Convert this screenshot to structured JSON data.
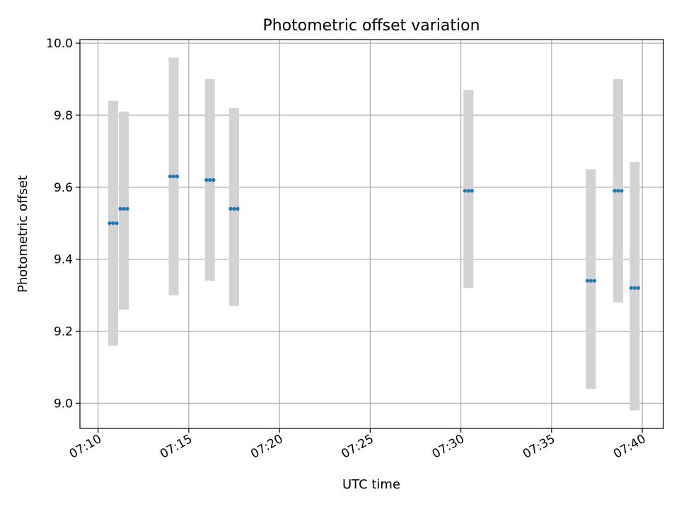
{
  "chart_data": {
    "type": "scatter",
    "title": "Photometric offset variation",
    "xlabel": "UTC time",
    "ylabel": "Photometric offset",
    "x_unit": "time (HH:MM)",
    "xlim": [
      "07:09:00",
      "07:41:10"
    ],
    "ylim": [
      8.93,
      10.01
    ],
    "xticks": [
      "07:10",
      "07:15",
      "07:20",
      "07:25",
      "07:30",
      "07:35",
      "07:40"
    ],
    "yticks": [
      9.0,
      9.2,
      9.4,
      9.6,
      9.8,
      10.0
    ],
    "grid": true,
    "colors": {
      "points": "#1f77b4",
      "error_bars": "#d3d3d3",
      "grid": "#b0b0b0"
    },
    "series": [
      {
        "points": [
          {
            "x": "07:10:50",
            "y": 9.5,
            "lower": 9.16,
            "upper": 9.84
          },
          {
            "x": "07:11:25",
            "y": 9.54,
            "lower": 9.26,
            "upper": 9.81
          },
          {
            "x": "07:14:10",
            "y": 9.63,
            "lower": 9.3,
            "upper": 9.96
          },
          {
            "x": "07:16:10",
            "y": 9.62,
            "lower": 9.34,
            "upper": 9.9
          },
          {
            "x": "07:17:30",
            "y": 9.54,
            "lower": 9.27,
            "upper": 9.82
          },
          {
            "x": "07:30:25",
            "y": 9.59,
            "lower": 9.32,
            "upper": 9.87
          },
          {
            "x": "07:37:10",
            "y": 9.34,
            "lower": 9.04,
            "upper": 9.65
          },
          {
            "x": "07:38:40",
            "y": 9.59,
            "lower": 9.28,
            "upper": 9.9
          },
          {
            "x": "07:39:35",
            "y": 9.32,
            "lower": 8.98,
            "upper": 9.67
          }
        ]
      }
    ]
  }
}
